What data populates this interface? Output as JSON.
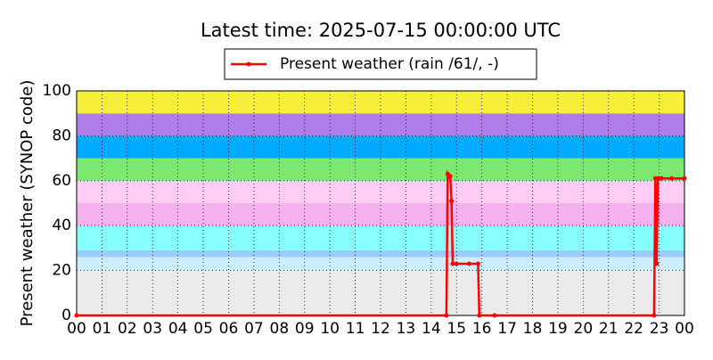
{
  "chart_data": {
    "type": "line",
    "title": "Latest time: 2025-07-15 00:00:00 UTC",
    "y_label": "Present weather (SYNOP code)",
    "xlim": [
      0,
      24
    ],
    "ylim": [
      0,
      100
    ],
    "xticks": [
      {
        "value": 0,
        "label": "00"
      },
      {
        "value": 1,
        "label": "01"
      },
      {
        "value": 2,
        "label": "02"
      },
      {
        "value": 3,
        "label": "03"
      },
      {
        "value": 4,
        "label": "04"
      },
      {
        "value": 5,
        "label": "05"
      },
      {
        "value": 6,
        "label": "06"
      },
      {
        "value": 7,
        "label": "07"
      },
      {
        "value": 8,
        "label": "08"
      },
      {
        "value": 9,
        "label": "09"
      },
      {
        "value": 10,
        "label": "10"
      },
      {
        "value": 11,
        "label": "11"
      },
      {
        "value": 12,
        "label": "12"
      },
      {
        "value": 13,
        "label": "13"
      },
      {
        "value": 14,
        "label": "14"
      },
      {
        "value": 15,
        "label": "15"
      },
      {
        "value": 16,
        "label": "16"
      },
      {
        "value": 17,
        "label": "17"
      },
      {
        "value": 18,
        "label": "18"
      },
      {
        "value": 19,
        "label": "19"
      },
      {
        "value": 20,
        "label": "20"
      },
      {
        "value": 21,
        "label": "21"
      },
      {
        "value": 22,
        "label": "22"
      },
      {
        "value": 23,
        "label": "23"
      },
      {
        "value": 24,
        "label": "00"
      }
    ],
    "yticks": [
      0,
      20,
      40,
      60,
      80,
      100
    ],
    "grid": true,
    "legend": "top",
    "bands": [
      {
        "from": 0,
        "to": 20,
        "color": "#ebebeb"
      },
      {
        "from": 20,
        "to": 26,
        "color": "#cceeff"
      },
      {
        "from": 26,
        "to": 29,
        "color": "#99ccff"
      },
      {
        "from": 29,
        "to": 40,
        "color": "#88ffff"
      },
      {
        "from": 40,
        "to": 50,
        "color": "#f5b0ee"
      },
      {
        "from": 50,
        "to": 60,
        "color": "#ffccf5"
      },
      {
        "from": 60,
        "to": 70,
        "color": "#7ce870"
      },
      {
        "from": 70,
        "to": 80,
        "color": "#00aaff"
      },
      {
        "from": 80,
        "to": 90,
        "color": "#b07ee8"
      },
      {
        "from": 90,
        "to": 100,
        "color": "#f7ef3a"
      }
    ],
    "x": [
      0,
      14.6,
      14.65,
      14.7,
      14.75,
      14.8,
      14.85,
      15.0,
      15.5,
      15.85,
      15.9,
      16.5,
      22.8,
      22.85,
      22.9,
      22.95,
      23.0,
      23.1,
      23.5,
      24
    ],
    "series": [
      {
        "name": "Present weather (rain /61/, -)",
        "color": "#ff0000",
        "values": [
          0,
          0,
          63,
          62,
          62,
          51,
          23,
          23,
          23,
          23,
          0,
          0,
          0,
          61,
          23,
          61,
          61,
          61,
          61,
          61
        ]
      }
    ]
  }
}
